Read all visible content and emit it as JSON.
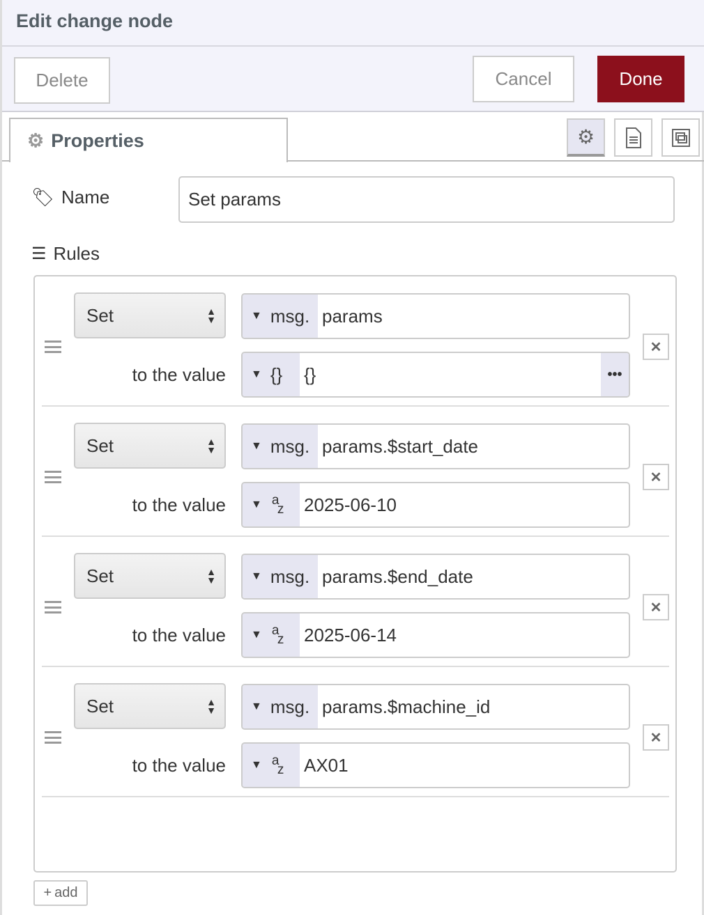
{
  "header": {
    "title": "Edit change node"
  },
  "buttons": {
    "delete": "Delete",
    "cancel": "Cancel",
    "done": "Done"
  },
  "colors": {
    "done_bg": "#8c101c",
    "header_bg": "#f3f3fb",
    "prefix_bg": "#e6e6f2"
  },
  "tabs": {
    "properties": "Properties",
    "icons": [
      "gear-icon",
      "document-icon",
      "frame-icon"
    ]
  },
  "form": {
    "name_label": "Name",
    "name_value": "Set params",
    "rules_label": "Rules"
  },
  "rules": [
    {
      "action": "Set",
      "prop_prefix": "msg.",
      "property": "params",
      "to_label": "to the value",
      "value_type": "{}",
      "value": "{}"
    },
    {
      "action": "Set",
      "prop_prefix": "msg.",
      "property": "params.$start_date",
      "to_label": "to the value",
      "value_type": "az",
      "value": "2025-06-10"
    },
    {
      "action": "Set",
      "prop_prefix": "msg.",
      "property": "params.$end_date",
      "to_label": "to the value",
      "value_type": "az",
      "value": "2025-06-14"
    },
    {
      "action": "Set",
      "prop_prefix": "msg.",
      "property": "params.$machine_id",
      "to_label": "to the value",
      "value_type": "az",
      "value": "AX01"
    }
  ],
  "add_label": "add"
}
